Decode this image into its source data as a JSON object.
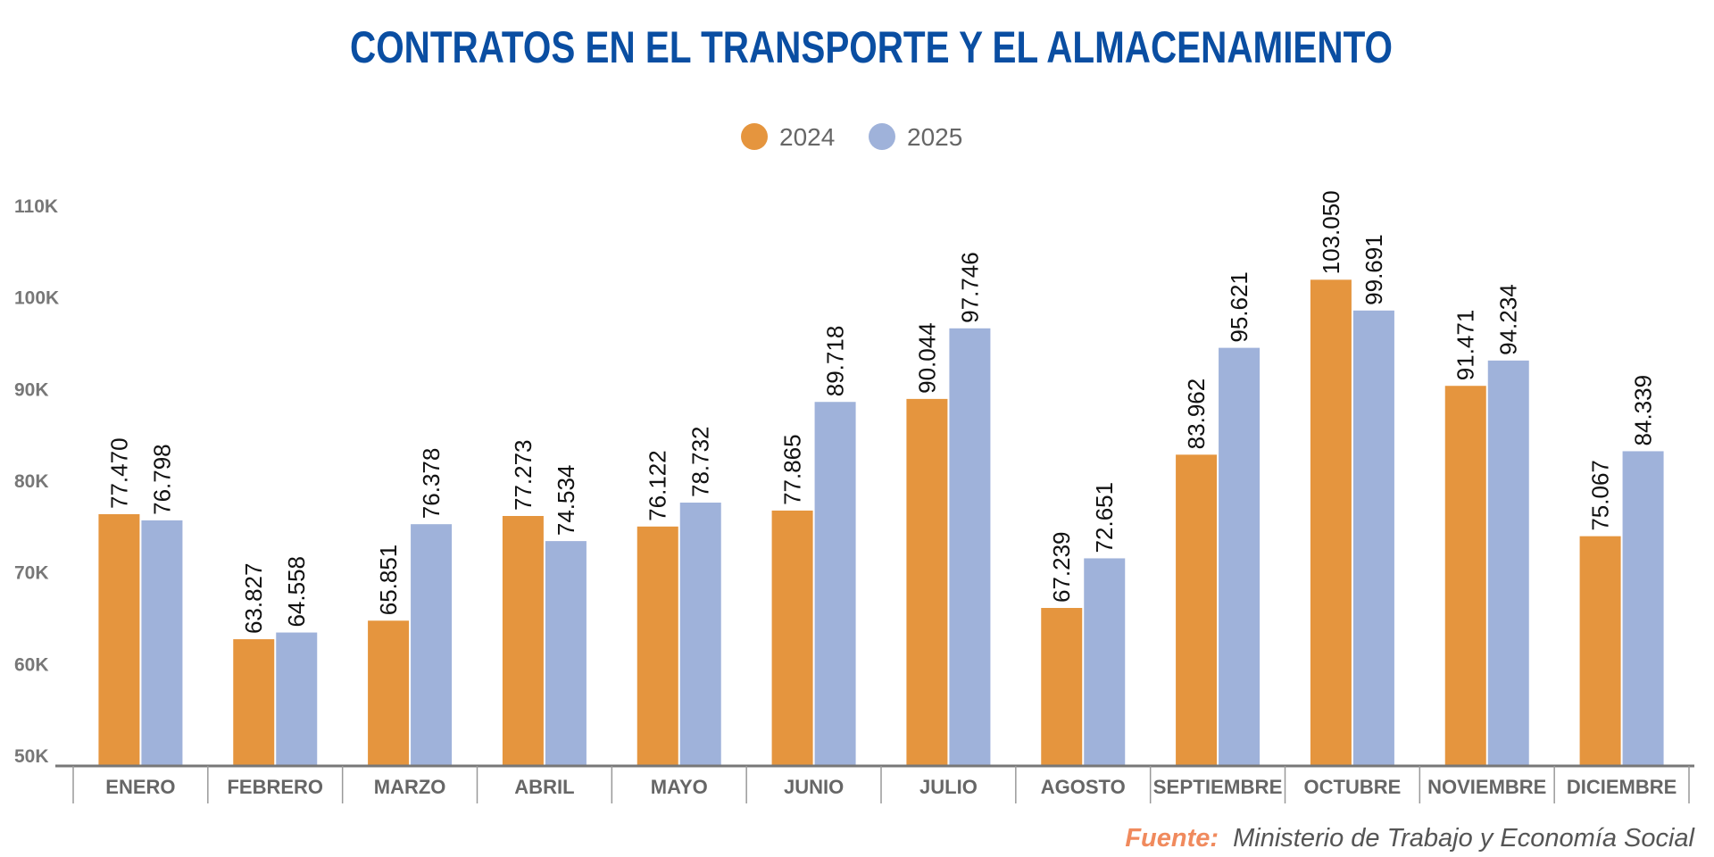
{
  "chart_data": {
    "type": "bar",
    "title": "CONTRATOS EN EL TRANSPORTE Y EL ALMACENAMIENTO",
    "categories": [
      "ENERO",
      "FEBRERO",
      "MARZO",
      "ABRIL",
      "MAYO",
      "JUNIO",
      "JULIO",
      "AGOSTO",
      "SEPTIEMBRE",
      "OCTUBRE",
      "NOVIEMBRE",
      "DICIEMBRE"
    ],
    "series": [
      {
        "name": "2024",
        "color": "#E5953E",
        "values": [
          77470,
          63827,
          65851,
          77273,
          76122,
          77865,
          90044,
          67239,
          83962,
          103050,
          91471,
          75067
        ],
        "labels": [
          "77.470",
          "63.827",
          "65.851",
          "77.273",
          "76.122",
          "77.865",
          "90.044",
          "67.239",
          "83.962",
          "103.050",
          "91.471",
          "75.067"
        ]
      },
      {
        "name": "2025",
        "color": "#9FB2DA",
        "values": [
          76798,
          64558,
          76378,
          74534,
          78732,
          89718,
          97746,
          72651,
          95621,
          99691,
          94234,
          84339
        ],
        "labels": [
          "76.798",
          "64.558",
          "76.378",
          "74.534",
          "78.732",
          "89.718",
          "97.746",
          "72.651",
          "95.621",
          "99.691",
          "94.234",
          "84.339"
        ]
      }
    ],
    "ylim": [
      50000,
      110000
    ],
    "yticks": [
      50000,
      60000,
      70000,
      80000,
      90000,
      100000,
      110000
    ],
    "ytick_labels": [
      "50K",
      "60K",
      "70K",
      "80K",
      "90K",
      "100K",
      "110K"
    ],
    "xlabel": "",
    "ylabel": "",
    "grid": false,
    "legend_placement": "top-center",
    "title_color": "#0A4EA2"
  },
  "source": {
    "label": "Fuente:",
    "text": "Ministerio de Trabajo y Economía Social",
    "label_color": "#F08A5D"
  }
}
